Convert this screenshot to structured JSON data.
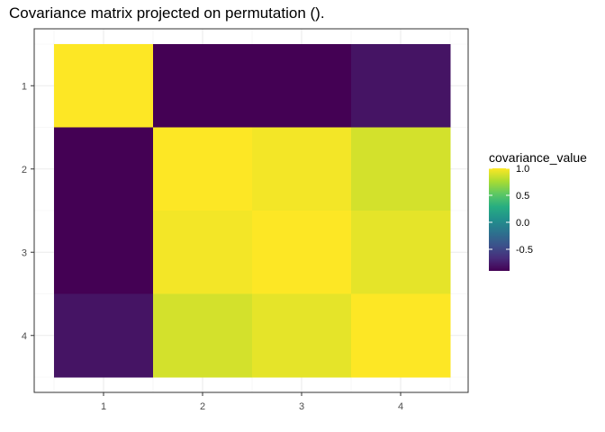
{
  "chart_data": {
    "type": "heatmap",
    "title": "Covariance matrix projected on permutation ().",
    "xlabel": "",
    "ylabel": "",
    "x_categories": [
      "1",
      "2",
      "3",
      "4"
    ],
    "y_categories": [
      "1",
      "2",
      "3",
      "4"
    ],
    "values": [
      [
        1.0,
        -0.9,
        -0.9,
        -0.8
      ],
      [
        -0.9,
        1.0,
        0.97,
        0.88
      ],
      [
        -0.9,
        0.97,
        1.0,
        0.93
      ],
      [
        -0.8,
        0.88,
        0.93,
        1.0
      ]
    ],
    "legend": {
      "title": "covariance_value",
      "placement": "right",
      "range": [
        -0.9,
        1.0
      ],
      "ticks": [
        1.0,
        0.5,
        0.0,
        -0.5
      ],
      "tick_labels": [
        "1.0",
        "0.5",
        "0.0",
        "-0.5"
      ]
    },
    "colormap": "viridis",
    "grid": true
  }
}
